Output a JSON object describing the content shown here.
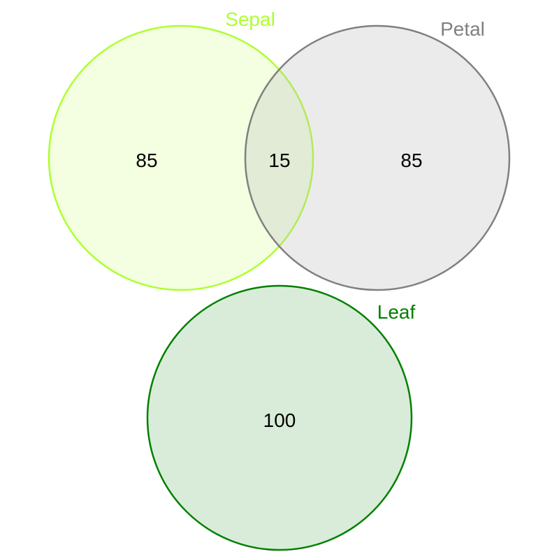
{
  "sets": [
    {
      "key": "sepal",
      "label": "Sepal",
      "stroke": "#adff2f",
      "fill": "#adff2f",
      "label_color": "#adff2f"
    },
    {
      "key": "petal",
      "label": "Petal",
      "stroke": "#808080",
      "fill": "#bebebe",
      "label_color": "#808080"
    },
    {
      "key": "leaf",
      "label": "Leaf",
      "stroke": "#008000",
      "fill": "#008000",
      "label_color": "#008000"
    }
  ],
  "regions": {
    "sepal_only": "85",
    "sepal_petal": "15",
    "petal_only": "85",
    "leaf_only": "100"
  }
}
